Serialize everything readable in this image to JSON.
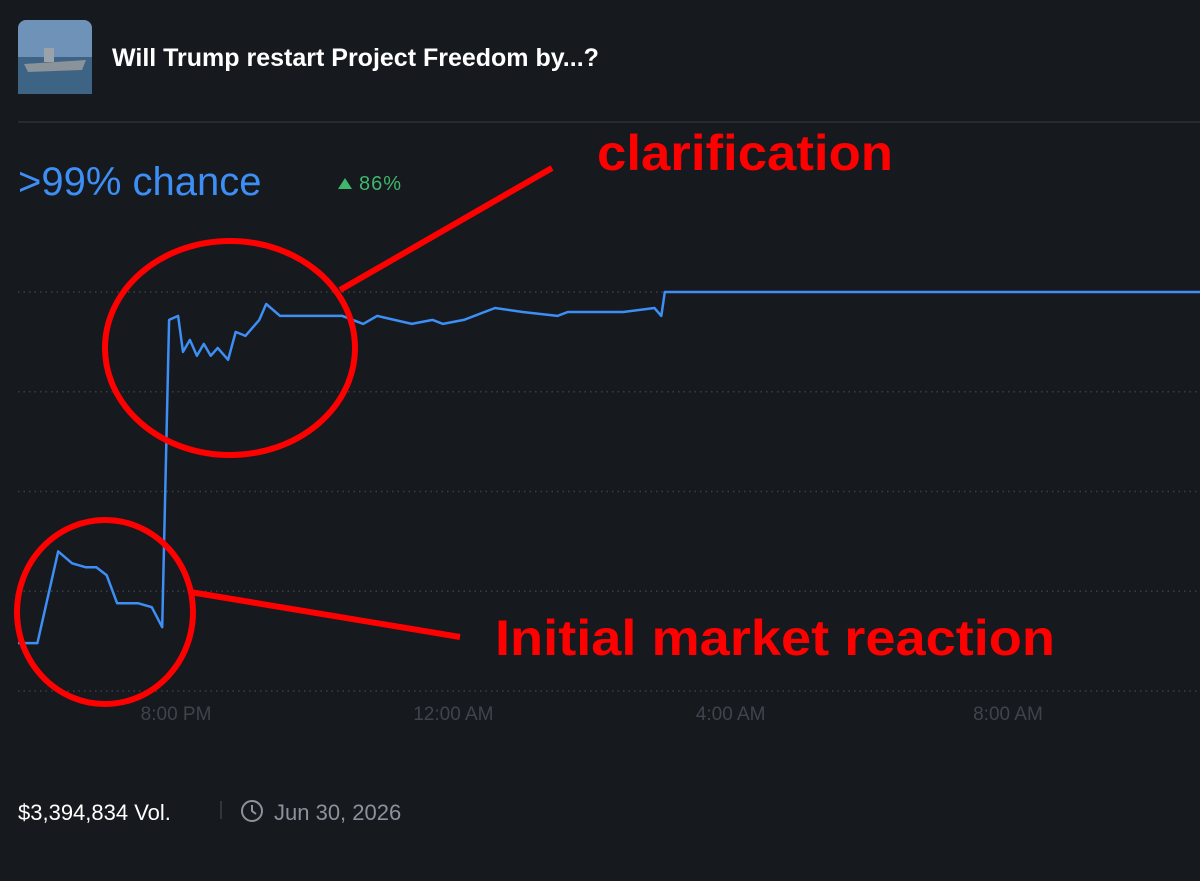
{
  "header": {
    "title": "Will Trump restart Project Freedom by...?"
  },
  "summary": {
    "chance": ">99% chance",
    "change": "86%"
  },
  "footer": {
    "volume": "$3,394,834 Vol.",
    "date": "Jun 30, 2026"
  },
  "chart_data": {
    "type": "line",
    "color": "#3d8ef5",
    "x": [
      17.72,
      18.0,
      18.3,
      18.5,
      18.7,
      18.85,
      19.0,
      19.15,
      19.45,
      19.65,
      19.8,
      19.9,
      20.03,
      20.1,
      20.2,
      20.3,
      20.4,
      20.5,
      20.6,
      20.75,
      20.86,
      21.0,
      21.2,
      21.3,
      21.5,
      21.8,
      22.4,
      22.7,
      22.9,
      23.4,
      23.7,
      23.85,
      24.15,
      24.6,
      25.0,
      25.5,
      25.65,
      26.45,
      26.9,
      27.0,
      27.05,
      34.77
    ],
    "values": [
      12,
      12,
      35,
      32,
      31,
      31,
      29,
      22,
      22,
      21,
      16,
      93,
      94,
      85,
      88,
      84,
      87,
      84,
      86,
      83,
      90,
      89,
      93,
      97,
      94,
      94,
      94,
      92,
      94,
      92,
      93,
      92,
      93,
      96,
      95,
      94,
      95,
      95,
      96,
      94,
      100,
      100
    ],
    "xlim": [
      17.72,
      34.77
    ],
    "ylim": [
      0,
      100
    ],
    "xticks": [
      {
        "value": 20,
        "label": "8:00 PM"
      },
      {
        "value": 24,
        "label": "12:00 AM"
      },
      {
        "value": 28,
        "label": "4:00 AM"
      },
      {
        "value": 32,
        "label": "8:00 AM"
      }
    ],
    "grid_lines": [
      0,
      25,
      50,
      75,
      100
    ],
    "annotations": [
      "clarification",
      "Initial market reaction"
    ],
    "annotation_color": "#ff0000"
  }
}
